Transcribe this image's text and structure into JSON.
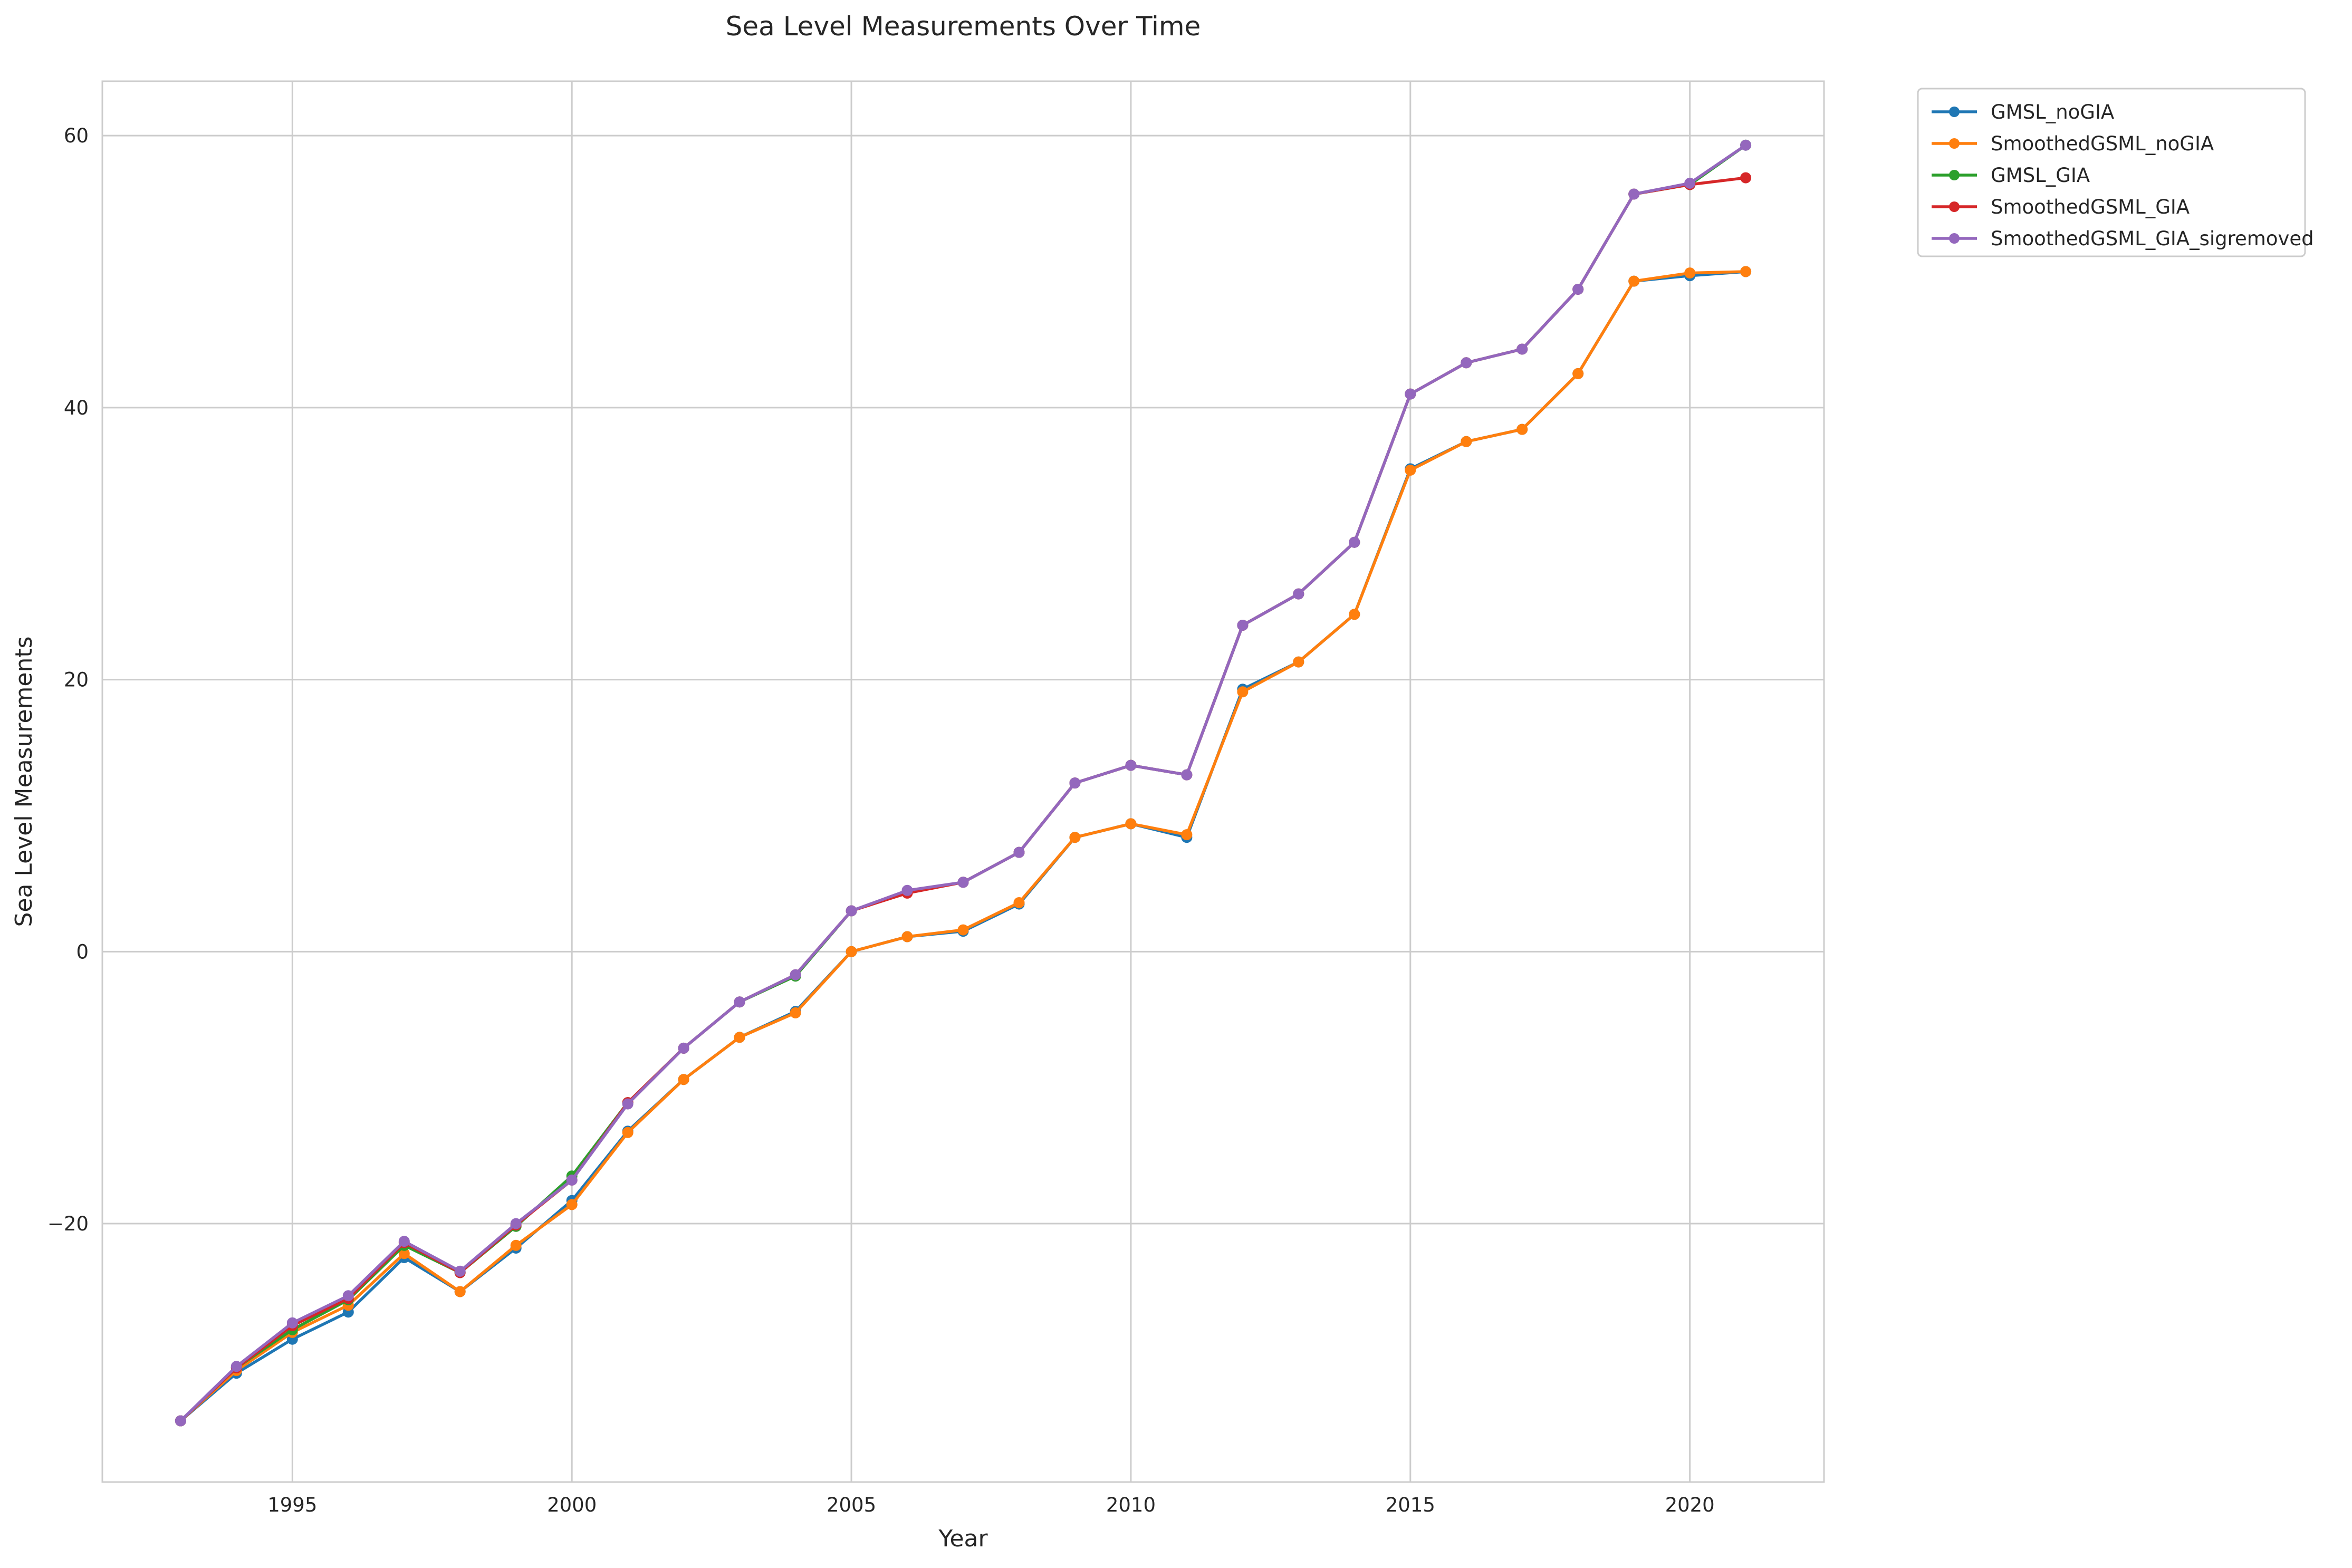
{
  "chart_data": {
    "type": "line",
    "title": "Sea Level Measurements Over Time",
    "xlabel": "Year",
    "ylabel": "Sea Level Measurements",
    "xlim": [
      1991.6,
      2022.4
    ],
    "ylim": [
      -39.0,
      64.0
    ],
    "xticks": [
      1995,
      2000,
      2005,
      2010,
      2015,
      2020
    ],
    "yticks": [
      -20,
      0,
      20,
      40,
      60
    ],
    "grid": true,
    "legend_position": "outside-top-right",
    "x": [
      1993,
      1994,
      1995,
      1996,
      1997,
      1998,
      1999,
      2000,
      2001,
      2002,
      2003,
      2004,
      2005,
      2006,
      2007,
      2008,
      2009,
      2010,
      2011,
      2012,
      2013,
      2014,
      2015,
      2016,
      2017,
      2018,
      2019,
      2020,
      2021
    ],
    "series": [
      {
        "name": "GMSL_noGIA",
        "color": "#1f77b4",
        "values": [
          -34.5,
          -31.0,
          -28.5,
          -26.5,
          -22.5,
          -25.0,
          -21.8,
          -18.3,
          -13.2,
          -9.4,
          -6.3,
          -4.4,
          0.0,
          1.1,
          1.5,
          3.5,
          8.4,
          9.4,
          8.4,
          19.3,
          21.3,
          24.8,
          35.5,
          37.5,
          38.4,
          42.5,
          49.3,
          49.7,
          50.0
        ]
      },
      {
        "name": "SmoothedGSML_noGIA",
        "color": "#ff7f0e",
        "values": [
          -34.5,
          -30.8,
          -28.0,
          -26.0,
          -22.2,
          -25.0,
          -21.6,
          -18.6,
          -13.3,
          -9.4,
          -6.3,
          -4.5,
          0.0,
          1.1,
          1.6,
          3.6,
          8.4,
          9.4,
          8.6,
          19.1,
          21.3,
          24.8,
          35.4,
          37.5,
          38.4,
          42.5,
          49.3,
          49.9,
          50.0
        ]
      },
      {
        "name": "GMSL_GIA",
        "color": "#2ca02c",
        "values": [
          -34.5,
          -30.6,
          -27.8,
          -25.6,
          -21.6,
          -23.6,
          -20.2,
          -16.5,
          -11.1,
          -7.1,
          -3.7,
          -1.8,
          3.0,
          4.4,
          5.1,
          7.3,
          12.4,
          13.7,
          13.0,
          24.0,
          26.3,
          30.1,
          41.0,
          43.3,
          44.3,
          48.7,
          55.7,
          56.4,
          59.3
        ]
      },
      {
        "name": "SmoothedGSML_GIA",
        "color": "#d62728",
        "values": [
          -34.5,
          -30.6,
          -27.5,
          -25.5,
          -21.4,
          -23.6,
          -20.1,
          -16.8,
          -11.1,
          -7.1,
          -3.7,
          -1.7,
          3.0,
          4.3,
          5.1,
          7.3,
          12.4,
          13.7,
          13.0,
          24.0,
          26.3,
          30.1,
          41.0,
          43.3,
          44.3,
          48.7,
          55.7,
          56.4,
          56.9
        ]
      },
      {
        "name": "SmoothedGSML_GIA_sigremoved",
        "color": "#9467bd",
        "values": [
          -34.5,
          -30.5,
          -27.3,
          -25.3,
          -21.3,
          -23.5,
          -20.0,
          -16.8,
          -11.2,
          -7.1,
          -3.7,
          -1.7,
          3.0,
          4.5,
          5.1,
          7.3,
          12.4,
          13.7,
          13.0,
          24.0,
          26.3,
          30.1,
          41.0,
          43.3,
          44.3,
          48.7,
          55.7,
          56.5,
          59.3
        ]
      }
    ]
  }
}
